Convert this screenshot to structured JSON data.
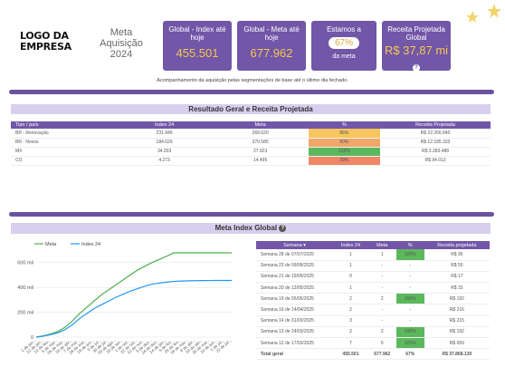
{
  "header": {
    "logo": "LOGO DA EMPRESA",
    "goal_title": "Meta Aquisição 2024",
    "subtitle": "Acompanhamento da aquisição pelas segmentações de base até o último dia fechado."
  },
  "kpis": [
    {
      "label": "Global - Index até hoje",
      "value": "455.501"
    },
    {
      "label": "Global - Meta até hoje",
      "value": "677.962"
    },
    {
      "label": "Estamos a",
      "value": "67%",
      "sub": "da meta"
    },
    {
      "label": "Receita Projetada Global",
      "value": "R$ 37,87 mi"
    }
  ],
  "section1": {
    "title": "Resultado Geral e Receita Projetada",
    "headers": [
      "Tipo / país",
      "Index 24",
      "Meta",
      "%",
      "Receita Projetada"
    ],
    "rows": [
      {
        "tipo": "BR - Renovação",
        "index": "231.946",
        "meta": "268.620",
        "pct": "86%",
        "receita": "R$ 22.266.840",
        "color": "yellow"
      },
      {
        "tipo": "BR - Novos",
        "index": "184.626",
        "meta": "370.585",
        "pct": "50%",
        "receita": "R$ 12.185.333",
        "color": "orange"
      },
      {
        "tipo": "MX",
        "index": "34.203",
        "meta": "27.923",
        "pct": "122%",
        "receita": "R$ 3.283.488",
        "color": "green"
      },
      {
        "tipo": "CO",
        "index": "4.273",
        "meta": "14.495",
        "pct": "29%",
        "receita": "R$ 94.013",
        "color": "red"
      }
    ]
  },
  "section2": {
    "title": "Meta Index Global",
    "headers": [
      "Semana",
      "Index 24",
      "Meta",
      "%",
      "Receita projetada"
    ],
    "rows": [
      {
        "semana": "Semana 28 de 07/07/2025",
        "index": "1",
        "meta": "1",
        "pct": "100%",
        "receita": "R$ 96",
        "color": "green"
      },
      {
        "semana": "Semana 23 de 09/06/2025",
        "index": "1",
        "meta": "-",
        "pct": "-",
        "receita": "R$ 50",
        "color": ""
      },
      {
        "semana": "Semana 21 de 19/05/2025",
        "index": "0",
        "meta": "-",
        "pct": "-",
        "receita": "R$ 17",
        "color": ""
      },
      {
        "semana": "Semana 20 de 12/05/2025",
        "index": "1",
        "meta": "-",
        "pct": "-",
        "receita": "R$ 33",
        "color": ""
      },
      {
        "semana": "Semana 19 de 05/05/2025",
        "index": "2",
        "meta": "2",
        "pct": "100%",
        "receita": "R$ 192",
        "color": "green"
      },
      {
        "semana": "Semana 16 de 14/04/2025",
        "index": "2",
        "meta": "-",
        "pct": "-",
        "receita": "R$ 216",
        "color": ""
      },
      {
        "semana": "Semana 14 de 31/03/2025",
        "index": "3",
        "meta": "-",
        "pct": "-",
        "receita": "R$ 215",
        "color": ""
      },
      {
        "semana": "Semana 13 de 24/03/2025",
        "index": "2",
        "meta": "2",
        "pct": "100%",
        "receita": "R$ 192",
        "color": "green"
      },
      {
        "semana": "Semana 12 de 17/03/2025",
        "index": "7",
        "meta": "6",
        "pct": "121%",
        "receita": "R$ 659",
        "color": "green"
      }
    ],
    "total": {
      "semana": "Total geral",
      "index": "455.501",
      "meta": "677.962",
      "pct": "67%",
      "receita": "R$ 37.868.130"
    }
  },
  "chart_data": {
    "type": "line",
    "series": [
      {
        "name": "Meta",
        "color": "#4caf50",
        "values": [
          0,
          10000,
          25000,
          45000,
          80000,
          130000,
          190000,
          240000,
          290000,
          340000,
          380000,
          420000,
          460000,
          500000,
          540000,
          570000,
          600000,
          625000,
          650000,
          677962,
          677962,
          677962,
          677962,
          677962,
          677962,
          677962,
          677962,
          677962
        ]
      },
      {
        "name": "Index 24",
        "color": "#2196f3",
        "values": [
          0,
          8000,
          20000,
          35000,
          60000,
          100000,
          150000,
          190000,
          230000,
          260000,
          290000,
          320000,
          345000,
          370000,
          390000,
          410000,
          425000,
          435000,
          442000,
          448000,
          451000,
          453000,
          454000,
          455000,
          455300,
          455501,
          455501,
          455501
        ]
      }
    ],
    "ytick_labels": [
      "0",
      "200 mil",
      "400 mil",
      "600 mil"
    ],
    "xtick_labels": [
      "1 de jan...",
      "22 de jan...",
      "12 de fev...",
      "5 de mar...",
      "26 de mar...",
      "16 de abr...",
      "7 de mai...",
      "28 de mai...",
      "18 de jun...",
      "9 de jul...",
      "30 de jul...",
      "20 de ago...",
      "10 de set...",
      "1 de out...",
      "22 de out...",
      "12 de nov...",
      "3 de dez...",
      "24 de dez...",
      "14 de jan...",
      "4 de fev...",
      "25 de fev...",
      "18 de mar...",
      "8 de abr...",
      "29 de abr...",
      "20 de mai...",
      "10 de jun...",
      "1 de jul...",
      "22 de jul..."
    ],
    "ylim": [
      0,
      700000
    ]
  }
}
